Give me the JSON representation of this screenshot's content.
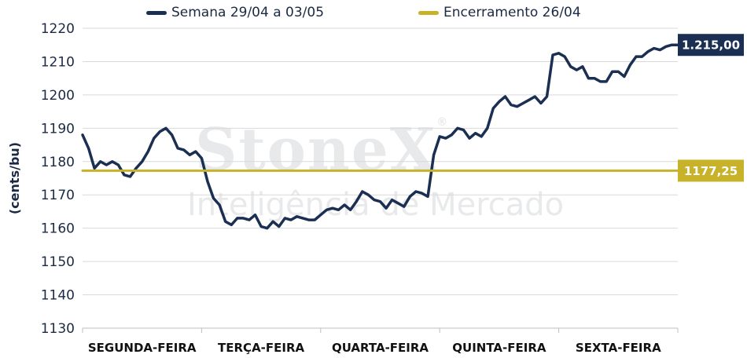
{
  "chart_data": {
    "type": "line",
    "ylabel": "(cents/bu)",
    "ylim": [
      1130,
      1220
    ],
    "yticks": [
      1130,
      1140,
      1150,
      1160,
      1170,
      1180,
      1190,
      1200,
      1210,
      1220
    ],
    "categories": [
      "SEGUNDA-FEIRA",
      "TERÇA-FEIRA",
      "QUARTA-FEIRA",
      "QUINTA-FEIRA",
      "SEXTA-FEIRA"
    ],
    "grid": true,
    "legend": "top",
    "series": [
      {
        "name": "Semana 29/04 a 03/05",
        "color": "#1b2f52",
        "x": [
          0.0,
          0.05,
          0.1,
          0.15,
          0.2,
          0.25,
          0.3,
          0.35,
          0.4,
          0.45,
          0.5,
          0.55,
          0.6,
          0.65,
          0.7,
          0.75,
          0.8,
          0.85,
          0.9,
          0.95,
          1.0,
          1.05,
          1.1,
          1.15,
          1.2,
          1.25,
          1.3,
          1.35,
          1.4,
          1.45,
          1.5,
          1.55,
          1.6,
          1.65,
          1.7,
          1.75,
          1.8,
          1.85,
          1.9,
          1.95,
          2.0,
          2.05,
          2.1,
          2.15,
          2.2,
          2.25,
          2.3,
          2.35,
          2.4,
          2.45,
          2.5,
          2.55,
          2.6,
          2.65,
          2.7,
          2.75,
          2.8,
          2.85,
          2.9,
          2.95,
          3.0,
          3.05,
          3.1,
          3.15,
          3.2,
          3.25,
          3.3,
          3.35,
          3.4,
          3.45,
          3.5,
          3.55,
          3.6,
          3.65,
          3.7,
          3.75,
          3.8,
          3.85,
          3.9,
          3.95,
          4.0,
          4.05,
          4.1,
          4.15,
          4.2,
          4.25,
          4.3,
          4.35,
          4.4,
          4.45,
          4.5,
          4.55,
          4.6,
          4.65,
          4.7,
          4.75,
          4.8,
          4.85,
          4.9,
          4.95,
          5.0
        ],
        "values": [
          1188,
          1184,
          1178,
          1180,
          1179,
          1180,
          1179,
          1176,
          1175.5,
          1178,
          1180,
          1183,
          1187,
          1189,
          1190,
          1188,
          1184,
          1183.5,
          1182,
          1183,
          1181,
          1174,
          1169,
          1167,
          1162,
          1161,
          1163,
          1163,
          1162.5,
          1164,
          1160.5,
          1160,
          1162,
          1160.5,
          1163,
          1162.5,
          1163.5,
          1163,
          1162.5,
          1162.5,
          1164,
          1165.5,
          1166,
          1165.5,
          1167,
          1165.5,
          1168,
          1171,
          1170,
          1168.5,
          1168,
          1166,
          1168.5,
          1167.5,
          1166.5,
          1169.5,
          1171,
          1170.5,
          1169.5,
          1182,
          1187.5,
          1187,
          1188,
          1190,
          1189.5,
          1187,
          1188.5,
          1187.5,
          1190,
          1196,
          1198,
          1199.5,
          1197,
          1196.5,
          1197.5,
          1198.5,
          1199.5,
          1197.5,
          1199.5,
          1212,
          1212.5,
          1211.5,
          1208.5,
          1207.5,
          1208.5,
          1205,
          1205,
          1204,
          1204,
          1207,
          1207,
          1205.5,
          1209,
          1211.5,
          1211.5,
          1213,
          1214,
          1213.5,
          1214.5,
          1215,
          1215
        ]
      },
      {
        "name": "Encerramento 26/04",
        "color": "#c8b229",
        "x": [
          0,
          5
        ],
        "values": [
          1177.25,
          1177.25
        ]
      }
    ],
    "annotations": [
      {
        "label": "1.215,00",
        "value": 1215,
        "color": "#1b2f52"
      },
      {
        "label": "1177,25",
        "value": 1177.25,
        "color": "#c8b229"
      }
    ]
  },
  "watermark": {
    "brand": "StoneX",
    "registered": "®",
    "subtitle": "Inteligência de Mercado"
  }
}
